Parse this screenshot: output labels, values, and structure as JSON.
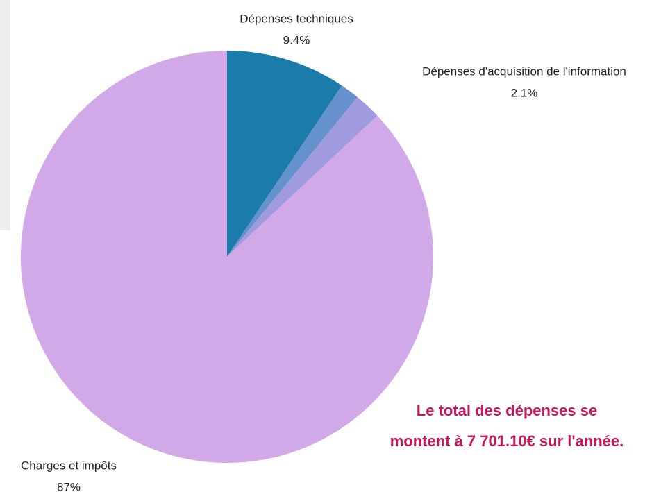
{
  "chart_data": {
    "type": "pie",
    "categories": [
      "Dépenses techniques",
      null,
      "Dépenses d'acquisition de l'information",
      "Charges et impôts"
    ],
    "values": [
      9.4,
      1.5,
      2.1,
      87
    ],
    "value_labels": [
      "9.4%",
      null,
      "2.1%",
      "87%"
    ],
    "colors": [
      "#1b7bab",
      "#6592cc",
      "#a09ade",
      "#d1a9e9"
    ],
    "annotation": "Le total des dépenses se montent à 7 701.10€ sur l'année."
  }
}
